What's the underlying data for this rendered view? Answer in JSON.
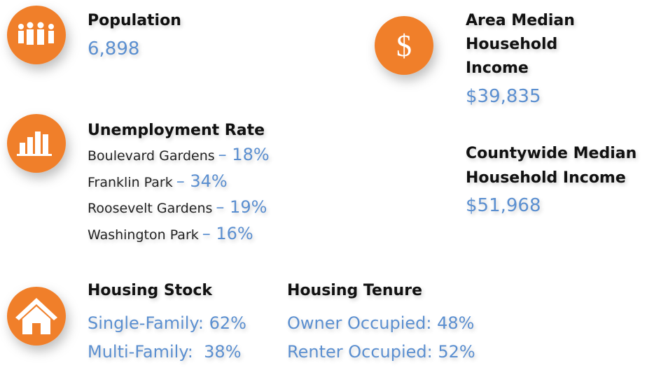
{
  "population": {
    "label": "Population",
    "value": "6,898"
  },
  "area_median_income": {
    "label_lines": [
      "Area Median",
      "Household",
      "Income"
    ],
    "value": "$39,835"
  },
  "unemployment": {
    "label": "Unemployment Rate",
    "items": [
      {
        "name": "Boulevard Gardens",
        "value": "– 18%"
      },
      {
        "name": "Franklin Park",
        "value": "– 34%"
      },
      {
        "name": "Roosevelt Gardens",
        "value": "– 19%"
      },
      {
        "name": "Washington Park",
        "value": "– 16%"
      }
    ]
  },
  "countywide_income": {
    "label_lines": [
      "Countywide Median",
      "Household Income"
    ],
    "value": "$51,968"
  },
  "housing_stock": {
    "label": "Housing Stock",
    "items": [
      "Single-Family: 62%",
      "Multi-Family:  38%"
    ]
  },
  "housing_tenure": {
    "label": "Housing Tenure",
    "items": [
      "Owner Occupied: 48%",
      "Renter Occupied: 52%"
    ]
  }
}
